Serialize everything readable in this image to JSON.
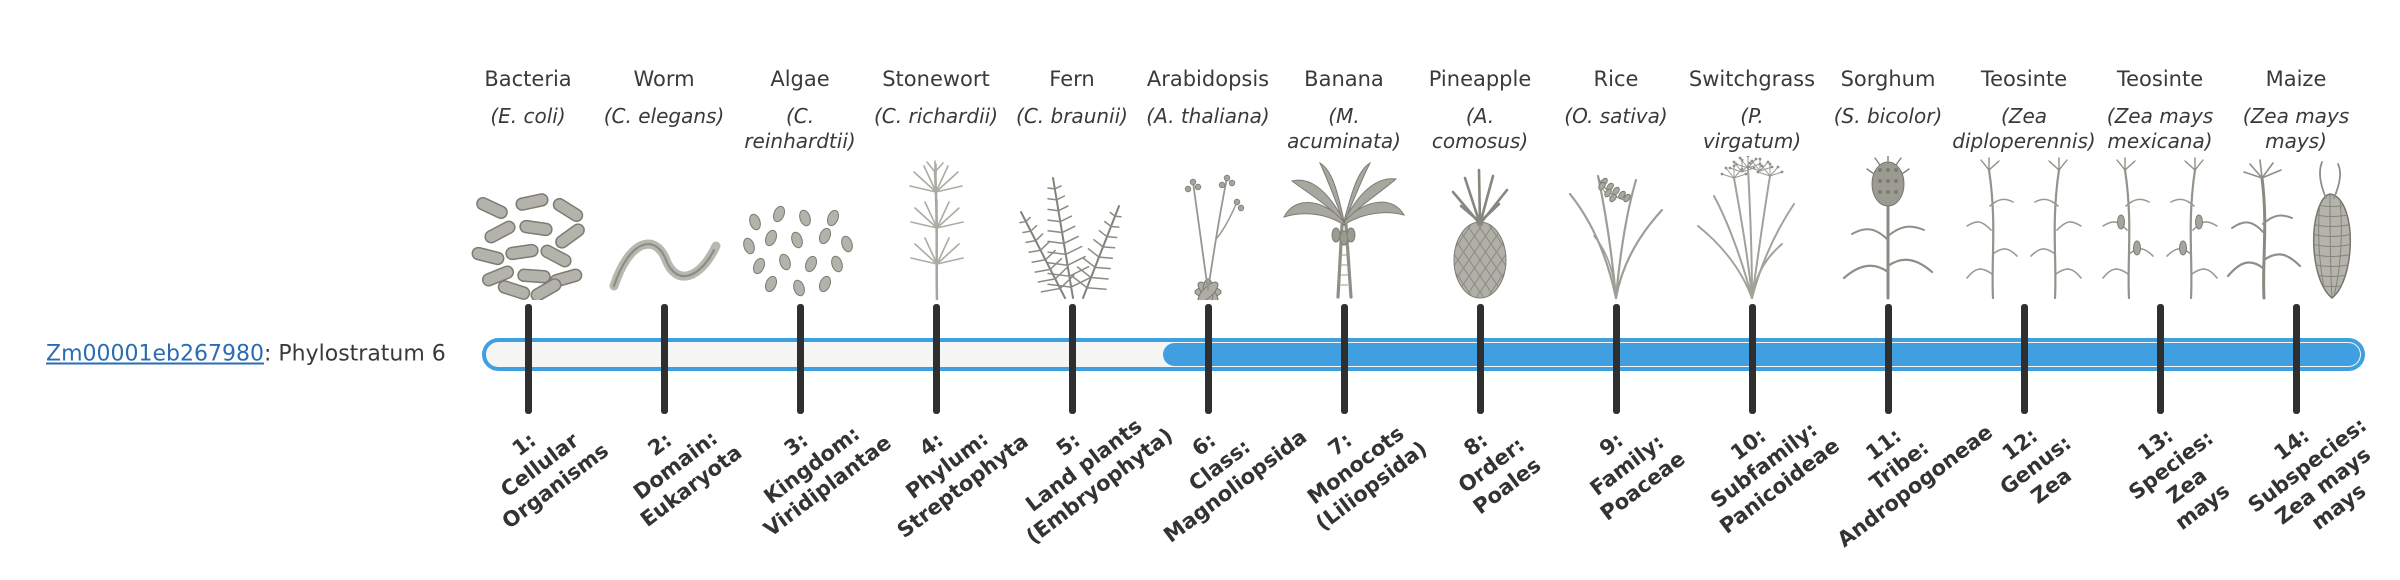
{
  "gene": {
    "id": "Zm00001eb267980",
    "suffix": ": Phylostratum 6"
  },
  "bar": {
    "fill_start_stratum": 6,
    "total_strata": 14
  },
  "colors": {
    "bar_fill": "#3f9fe0",
    "bar_outline": "#3f9fe0",
    "bar_track": "#f5f5f3",
    "tick": "#2f2f2f",
    "link": "#2a6db4",
    "text": "#3a3a3a"
  },
  "strata": [
    {
      "n": 1,
      "organism": "Bacteria",
      "latin": "(E. coli)",
      "label": "1:\nCellular\nOrganisms",
      "icon": "bacteria"
    },
    {
      "n": 2,
      "organism": "Worm",
      "latin": "(C. elegans)",
      "label": "2:\nDomain:\nEukaryota",
      "icon": "worm"
    },
    {
      "n": 3,
      "organism": "Algae",
      "latin": "(C.\nreinhardtii)",
      "label": "3:\nKingdom:\nViridiplantae",
      "icon": "algae"
    },
    {
      "n": 4,
      "organism": "Stonewort",
      "latin": "(C. richardii)",
      "label": "4:\nPhylum:\nStreptophyta",
      "icon": "stonewort"
    },
    {
      "n": 5,
      "organism": "Fern",
      "latin": "(C. braunii)",
      "label": "5:\nLand plants\n(Embryophyta)",
      "icon": "fern"
    },
    {
      "n": 6,
      "organism": "Arabidopsis",
      "latin": "(A. thaliana)",
      "label": "6:\nClass:\nMagnoliopsida",
      "icon": "arabidopsis"
    },
    {
      "n": 7,
      "organism": "Banana",
      "latin": "(M.\nacuminata)",
      "label": "7:\nMonocots\n(Liliopsida)",
      "icon": "banana"
    },
    {
      "n": 8,
      "organism": "Pineapple",
      "latin": "(A.\ncomosus)",
      "label": "8:\nOrder:\nPoales",
      "icon": "pineapple"
    },
    {
      "n": 9,
      "organism": "Rice",
      "latin": "(O. sativa)",
      "label": "9:\nFamily:\nPoaceae",
      "icon": "rice"
    },
    {
      "n": 10,
      "organism": "Switchgrass",
      "latin": "(P.\nvirgatum)",
      "label": "10:\nSubfamily:\nPanicoideae",
      "icon": "switchgrass"
    },
    {
      "n": 11,
      "organism": "Sorghum",
      "latin": "(S. bicolor)",
      "label": "11:\nTribe:\nAndropogoneae",
      "icon": "sorghum"
    },
    {
      "n": 12,
      "organism": "Teosinte",
      "latin": "(Zea\ndiploperennis)",
      "label": "12:\nGenus:\nZea",
      "icon": "teosinte"
    },
    {
      "n": 13,
      "organism": "Teosinte",
      "latin": "(Zea mays\nmexicana)",
      "label": "13:\nSpecies:\nZea\nmays",
      "icon": "teosinte-mexicana"
    },
    {
      "n": 14,
      "organism": "Maize",
      "latin": "(Zea mays\nmays)",
      "label": "14:\nSubspecies:\nZea mays\nmays",
      "icon": "maize"
    }
  ]
}
